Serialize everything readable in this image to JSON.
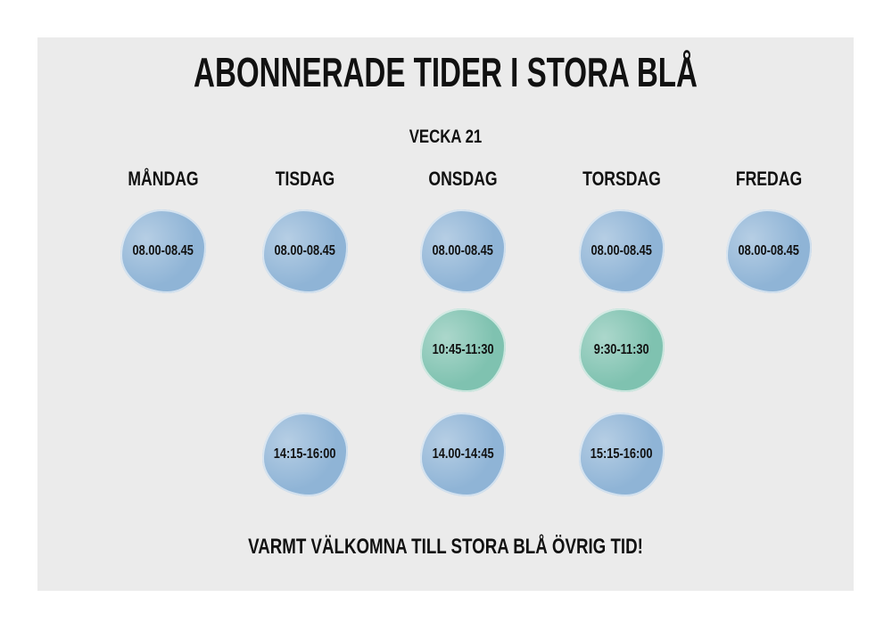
{
  "title": "ABONNERADE TIDER I STORA BLÅ",
  "week": "VECKA 21",
  "days": [
    {
      "name": "MÅNDAG",
      "slots": [
        {
          "time": "08.00-08.45",
          "color": "#8fb4d6"
        },
        null,
        null
      ]
    },
    {
      "name": "TISDAG",
      "slots": [
        {
          "time": "08.00-08.45",
          "color": "#8fb4d6"
        },
        null,
        {
          "time": "14:15-16:00",
          "color": "#8fb4d6"
        }
      ]
    },
    {
      "name": "ONSDAG",
      "slots": [
        {
          "time": "08.00-08.45",
          "color": "#8fb4d6"
        },
        {
          "time": "10:45-11:30",
          "color": "#7fc2b0"
        },
        {
          "time": "14.00-14:45",
          "color": "#8fb4d6"
        }
      ]
    },
    {
      "name": "TORSDAG",
      "slots": [
        {
          "time": "08.00-08.45",
          "color": "#8fb4d6"
        },
        {
          "time": "9:30-11:30",
          "color": "#7fc2b0"
        },
        {
          "time": "15:15-16:00",
          "color": "#8fb4d6"
        }
      ]
    },
    {
      "name": "FREDAG",
      "slots": [
        {
          "time": "08.00-08.45",
          "color": "#8fb4d6"
        },
        null,
        null
      ]
    }
  ],
  "footer": "VARMT VÄLKOMNA TILL STORA BLÅ ÖVRIG TID!"
}
